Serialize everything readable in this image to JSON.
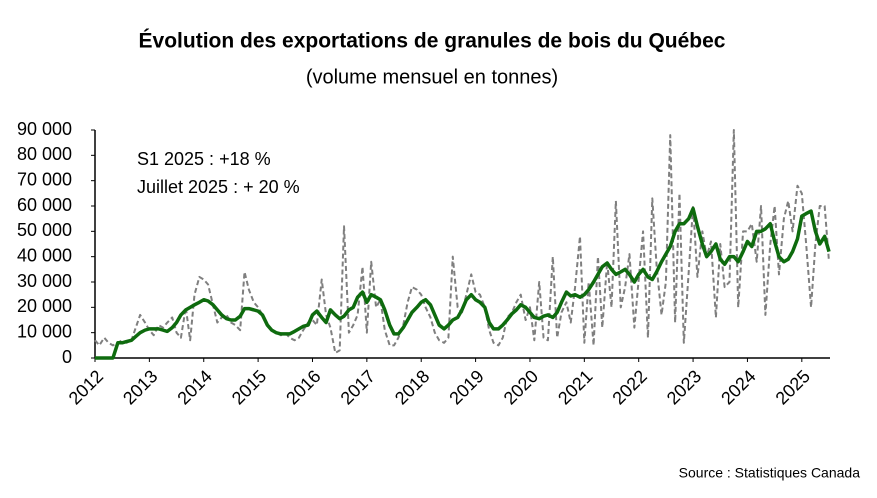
{
  "chart_data": {
    "type": "line",
    "title": "Évolution des exportations de granules de bois du Québec",
    "subtitle": "(volume mensuel en tonnes)",
    "annotations": [
      "S1 2025 : +18 %",
      "Juillet 2025 : + 20 %"
    ],
    "source": "Source : Statistiques Canada",
    "xlim": [
      2012,
      2025.5
    ],
    "xticks": [
      2012,
      2013,
      2014,
      2015,
      2016,
      2017,
      2018,
      2019,
      2020,
      2021,
      2022,
      2023,
      2024,
      2025
    ],
    "ylim": [
      0,
      90000
    ],
    "yticks": [
      0,
      {
        "value": 10000,
        "label": "10 000"
      },
      {
        "value": 20000,
        "label": "20 000"
      },
      {
        "value": 30000,
        "label": "30 000"
      },
      {
        "value": 40000,
        "label": "40 000"
      },
      {
        "value": 50000,
        "label": "50 000"
      },
      {
        "value": 60000,
        "label": "60 000"
      },
      {
        "value": 70000,
        "label": "70 000"
      },
      {
        "value": 80000,
        "label": "80 000"
      },
      {
        "value": 90000,
        "label": "90 000"
      }
    ],
    "grid": false,
    "x": [
      2012.0,
      2012.08,
      2012.17,
      2012.25,
      2012.33,
      2012.42,
      2012.5,
      2012.58,
      2012.67,
      2012.75,
      2012.83,
      2012.92,
      2013.0,
      2013.08,
      2013.17,
      2013.25,
      2013.33,
      2013.42,
      2013.5,
      2013.58,
      2013.67,
      2013.75,
      2013.83,
      2013.92,
      2014.0,
      2014.08,
      2014.17,
      2014.25,
      2014.33,
      2014.42,
      2014.5,
      2014.58,
      2014.67,
      2014.75,
      2014.83,
      2014.92,
      2015.0,
      2015.08,
      2015.17,
      2015.25,
      2015.33,
      2015.42,
      2015.5,
      2015.58,
      2015.67,
      2015.75,
      2015.83,
      2015.92,
      2016.0,
      2016.08,
      2016.17,
      2016.25,
      2016.33,
      2016.42,
      2016.5,
      2016.58,
      2016.67,
      2016.75,
      2016.83,
      2016.92,
      2017.0,
      2017.08,
      2017.17,
      2017.25,
      2017.33,
      2017.42,
      2017.5,
      2017.58,
      2017.67,
      2017.75,
      2017.83,
      2017.92,
      2018.0,
      2018.08,
      2018.17,
      2018.25,
      2018.33,
      2018.42,
      2018.5,
      2018.58,
      2018.67,
      2018.75,
      2018.83,
      2018.92,
      2019.0,
      2019.08,
      2019.17,
      2019.25,
      2019.33,
      2019.42,
      2019.5,
      2019.58,
      2019.67,
      2019.75,
      2019.83,
      2019.92,
      2020.0,
      2020.08,
      2020.17,
      2020.25,
      2020.33,
      2020.42,
      2020.5,
      2020.58,
      2020.67,
      2020.75,
      2020.83,
      2020.92,
      2021.0,
      2021.08,
      2021.17,
      2021.25,
      2021.33,
      2021.42,
      2021.5,
      2021.58,
      2021.67,
      2021.75,
      2021.83,
      2021.92,
      2022.0,
      2022.08,
      2022.17,
      2022.25,
      2022.33,
      2022.42,
      2022.5,
      2022.58,
      2022.67,
      2022.75,
      2022.83,
      2022.92,
      2023.0,
      2023.08,
      2023.17,
      2023.25,
      2023.33,
      2023.42,
      2023.5,
      2023.58,
      2023.67,
      2023.75,
      2023.83,
      2023.92,
      2024.0,
      2024.08,
      2024.17,
      2024.25,
      2024.33,
      2024.42,
      2024.5,
      2024.58,
      2024.67,
      2024.75,
      2024.83,
      2024.92,
      2025.0,
      2025.08,
      2025.17,
      2025.25,
      2025.33,
      2025.42,
      2025.5
    ],
    "series": [
      {
        "color": "#7f7f7f",
        "dashed": true,
        "width": 2,
        "values": [
          7000,
          5000,
          8000,
          6000,
          5000,
          6000,
          7000,
          6000,
          7000,
          12000,
          17000,
          14000,
          11000,
          9000,
          13000,
          12000,
          14000,
          16000,
          10000,
          8000,
          20000,
          7000,
          25000,
          32000,
          31000,
          29000,
          21000,
          14000,
          16000,
          17000,
          14000,
          13000,
          11000,
          34000,
          27000,
          22000,
          20000,
          17000,
          13000,
          11000,
          10000,
          9000,
          10000,
          8000,
          7000,
          8000,
          11000,
          14000,
          15000,
          13000,
          31000,
          17000,
          12000,
          2000,
          3000,
          52000,
          10000,
          13000,
          17000,
          36000,
          10000,
          38000,
          20000,
          23000,
          11000,
          5000,
          5000,
          8000,
          13000,
          22000,
          28000,
          27000,
          25000,
          20000,
          16000,
          10000,
          7000,
          6000,
          8000,
          40000,
          20000,
          18000,
          25000,
          33000,
          26000,
          25000,
          20000,
          11000,
          6000,
          5000,
          8000,
          16000,
          18000,
          22000,
          25000,
          15000,
          20000,
          7000,
          30000,
          8000,
          7000,
          40000,
          8000,
          18000,
          22000,
          14000,
          28000,
          48000,
          6000,
          30000,
          5000,
          40000,
          12000,
          38000,
          20000,
          62000,
          20000,
          28000,
          41000,
          12000,
          31000,
          50000,
          8000,
          63000,
          36000,
          17000,
          30000,
          88000,
          14000,
          65000,
          6000,
          34000,
          60000,
          32000,
          50000,
          40000,
          46000,
          16000,
          45000,
          28000,
          30000,
          90000,
          20000,
          50000,
          50000,
          53000,
          38000,
          60000,
          17000,
          45000,
          60000,
          33000,
          55000,
          62000,
          50000,
          68000,
          65000,
          45000,
          20000,
          45000,
          60000,
          60000,
          38000
        ]
      },
      {
        "color": "#0e6b0e",
        "dashed": false,
        "width": 3.5,
        "values": [
          0,
          0,
          0,
          0,
          0,
          6000,
          6000,
          6500,
          7000,
          8500,
          10000,
          11000,
          11500,
          11500,
          11500,
          11000,
          10500,
          12000,
          14000,
          17000,
          19000,
          20000,
          21000,
          22000,
          23000,
          22500,
          21000,
          19000,
          17000,
          15500,
          15000,
          15000,
          16500,
          19500,
          19500,
          19000,
          18500,
          17000,
          13000,
          11000,
          10000,
          9500,
          9500,
          9500,
          10500,
          11500,
          12500,
          13000,
          17000,
          18500,
          16000,
          14000,
          19000,
          17000,
          15500,
          16500,
          19000,
          20000,
          24000,
          26000,
          22000,
          25000,
          24000,
          23000,
          19000,
          13000,
          9500,
          9500,
          12000,
          15000,
          18000,
          20000,
          22000,
          23000,
          21000,
          17000,
          13000,
          11500,
          13000,
          15000,
          16000,
          19000,
          23000,
          25000,
          23000,
          22000,
          20000,
          14000,
          11500,
          11500,
          13000,
          15000,
          17500,
          19000,
          21000,
          20000,
          18000,
          16000,
          15500,
          16500,
          17000,
          16000,
          18000,
          22000,
          26000,
          24500,
          25000,
          24000,
          25000,
          27000,
          30000,
          33000,
          36000,
          37500,
          35000,
          33000,
          34000,
          35000,
          33000,
          30000,
          33000,
          35000,
          32000,
          31000,
          34000,
          38000,
          41000,
          44000,
          50000,
          53000,
          53000,
          55000,
          59000,
          52000,
          45000,
          40000,
          42000,
          45000,
          39000,
          37000,
          40000,
          40000,
          38000,
          42000,
          46000,
          44000,
          50000,
          50000,
          51000,
          53000,
          46000,
          40000,
          38000,
          39000,
          42000,
          47000,
          56000,
          57000,
          58000,
          50000,
          45000,
          48000,
          42000
        ]
      }
    ]
  }
}
